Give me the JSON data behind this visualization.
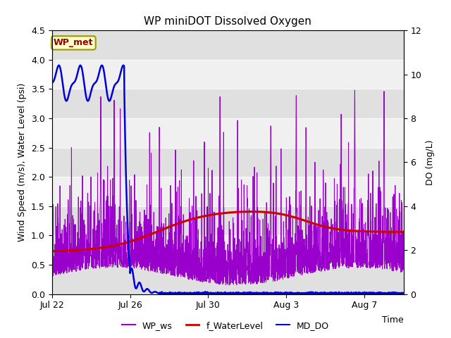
{
  "title": "WP miniDOT Dissolved Oxygen",
  "xlabel": "Time",
  "ylabel_left": "Wind Speed (m/s), Water Level (psi)",
  "ylabel_right": "DO (mg/L)",
  "ylim_left": [
    0.0,
    4.5
  ],
  "ylim_right": [
    0,
    12
  ],
  "yticks_left": [
    0.0,
    0.5,
    1.0,
    1.5,
    2.0,
    2.5,
    3.0,
    3.5,
    4.0,
    4.5
  ],
  "yticks_right": [
    0,
    2,
    4,
    6,
    8,
    10,
    12
  ],
  "xtick_labels": [
    "Jul 22",
    "Jul 26",
    "Jul 30",
    "Aug 3",
    "Aug 7"
  ],
  "xtick_positions": [
    0,
    4,
    8,
    12,
    16
  ],
  "background_color": "#ffffff",
  "plot_bg_color": "#f0f0f0",
  "wp_ws_color": "#9900cc",
  "f_waterlevel_color": "#cc0000",
  "md_do_color": "#0000dd",
  "legend_label_ws": "WP_ws",
  "legend_label_wl": "f_WaterLevel",
  "legend_label_do": "MD_DO",
  "annotation_text": "WP_met",
  "annotation_color": "#990000",
  "annotation_bg": "#ffffcc",
  "annotation_border": "#999900",
  "hband_colors": [
    "#e0e0e0",
    "#f0f0f0"
  ],
  "hband_edges": [
    0.0,
    0.5,
    1.0,
    1.5,
    2.0,
    2.5,
    3.0,
    3.5,
    4.0,
    4.5
  ]
}
